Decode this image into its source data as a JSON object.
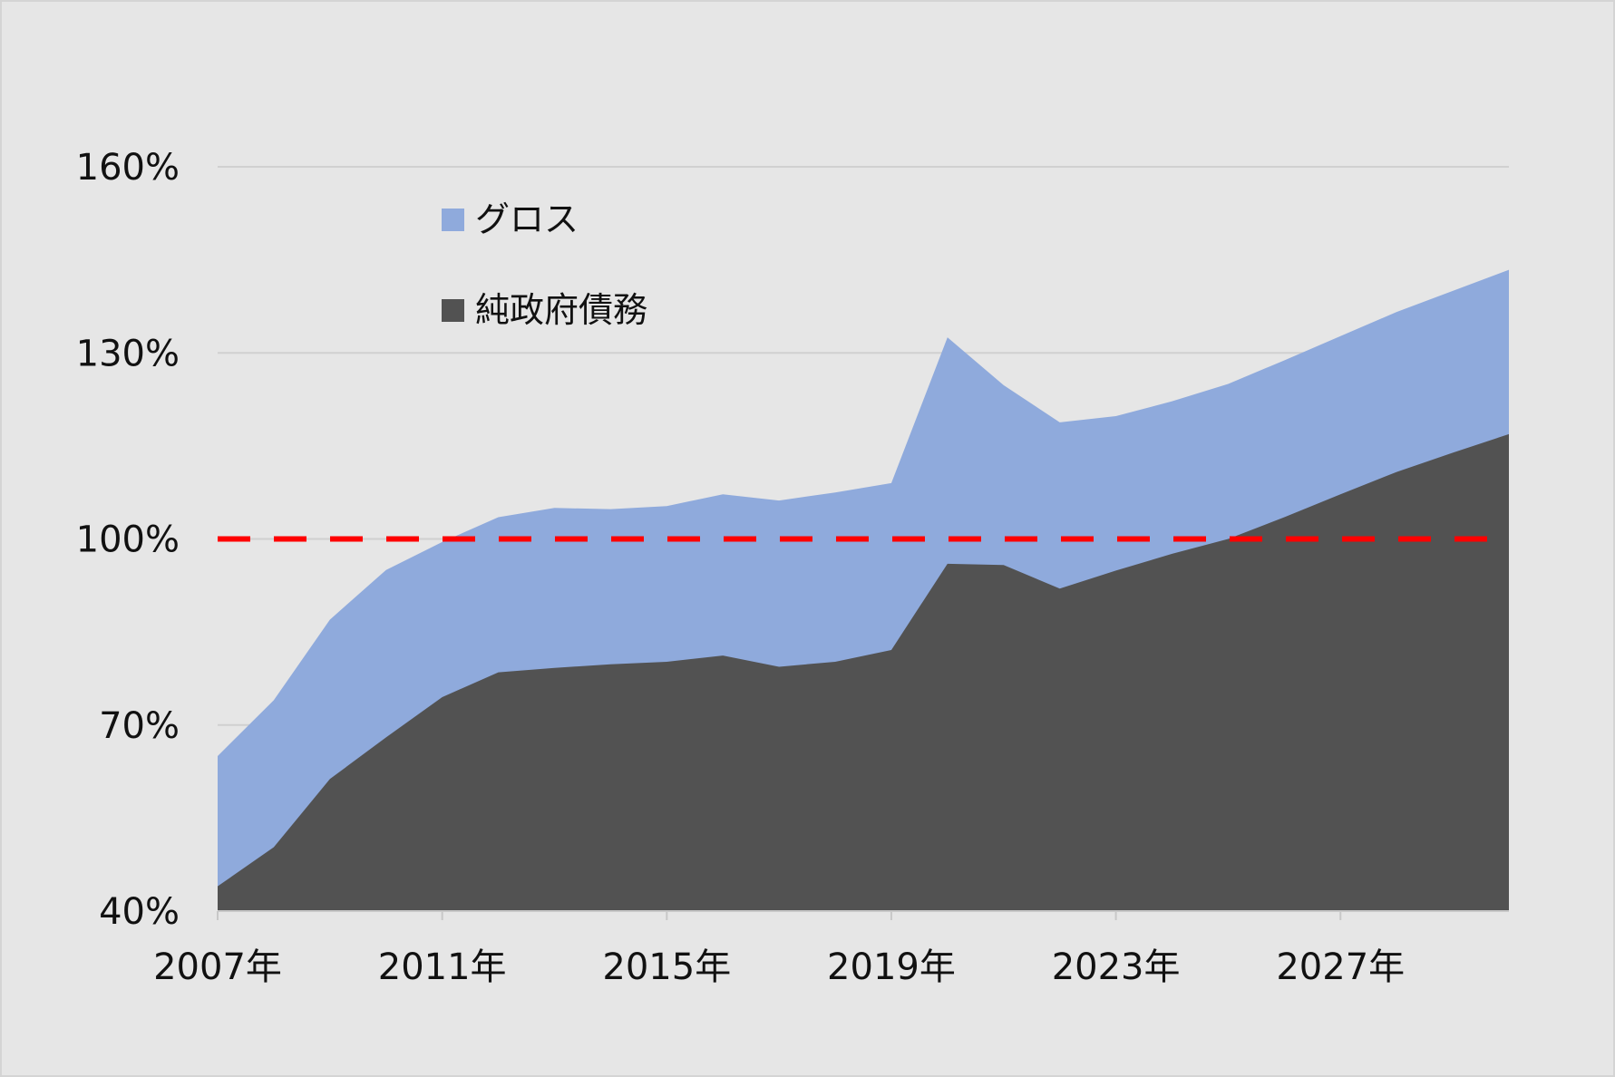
{
  "chart_data": {
    "type": "area",
    "title": "",
    "xlabel": "",
    "ylabel": "",
    "x": [
      2007,
      2008,
      2009,
      2010,
      2011,
      2012,
      2013,
      2014,
      2015,
      2016,
      2017,
      2018,
      2019,
      2020,
      2021,
      2022,
      2023,
      2024,
      2025,
      2026,
      2027,
      2028,
      2029,
      2030
    ],
    "ylim": [
      40,
      160
    ],
    "yticks": [
      40,
      70,
      100,
      130,
      160
    ],
    "ytick_labels": [
      "40%",
      "70%",
      "100%",
      "130%",
      "160%"
    ],
    "xticks": [
      2007,
      2011,
      2015,
      2019,
      2023,
      2027
    ],
    "xtick_labels": [
      "2007年",
      "2011年",
      "2015年",
      "2019年",
      "2023年",
      "2027年"
    ],
    "grid": true,
    "legend_position": "top-left",
    "series": [
      {
        "name": "グロス",
        "color": "#8faadc",
        "values": [
          65,
          74,
          87,
          95,
          99.5,
          103.5,
          105,
          104.8,
          105.3,
          107.2,
          106.2,
          107.5,
          109,
          132.5,
          124.8,
          118.8,
          119.8,
          122.2,
          125,
          128.8,
          132.7,
          136.6,
          140,
          143.4
        ]
      },
      {
        "name": "純政府債務",
        "color": "#525252",
        "values": [
          44,
          50.3,
          61.3,
          68,
          74.5,
          78.5,
          79.2,
          79.8,
          80.2,
          81.2,
          79.4,
          80.2,
          82.1,
          96,
          95.8,
          92,
          94.9,
          97.6,
          100,
          103.5,
          107.2,
          110.8,
          113.9,
          116.9
        ]
      }
    ],
    "reference_line": {
      "value": 100,
      "color": "#ff0000",
      "style": "dashed"
    }
  }
}
